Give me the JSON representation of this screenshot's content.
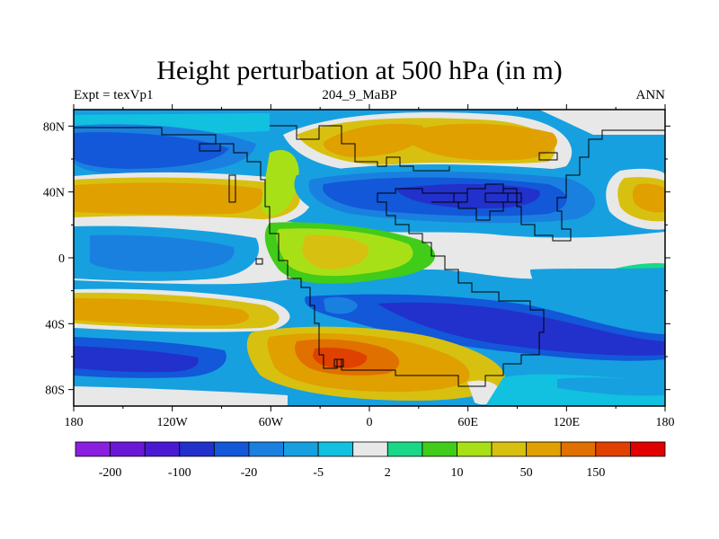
{
  "title": "Height perturbation at 500 hPa (in m)",
  "subtitle_left": "Expt = texVp1",
  "subtitle_center": "204_9_MaBP",
  "subtitle_right": "ANN",
  "lat_ticks": [
    {
      "label": "80N",
      "value": 80
    },
    {
      "label": "40N",
      "value": 40
    },
    {
      "label": "0",
      "value": 0
    },
    {
      "label": "40S",
      "value": -40
    },
    {
      "label": "80S",
      "value": -80
    }
  ],
  "lon_ticks": [
    {
      "label": "180",
      "value": -180
    },
    {
      "label": "120W",
      "value": -120
    },
    {
      "label": "60W",
      "value": -60
    },
    {
      "label": "0",
      "value": 0
    },
    {
      "label": "60E",
      "value": 60
    },
    {
      "label": "120E",
      "value": 120
    },
    {
      "label": "180",
      "value": 180
    }
  ],
  "colorbar": {
    "colors": [
      "#8a1fe0",
      "#6b18d6",
      "#4a1ad2",
      "#2230cc",
      "#1258d8",
      "#1a80e0",
      "#16a0e0",
      "#12c0e0",
      "#e8e8e8",
      "#18d888",
      "#40cc18",
      "#a8e018",
      "#d8c010",
      "#e0a000",
      "#e07000",
      "#e04000",
      "#e00000"
    ],
    "labels": [
      {
        "text": "-200",
        "boundary": 1
      },
      {
        "text": "-100",
        "boundary": 3
      },
      {
        "text": "-20",
        "boundary": 5
      },
      {
        "text": "-5",
        "boundary": 7
      },
      {
        "text": "2",
        "boundary": 9
      },
      {
        "text": "10",
        "boundary": 11
      },
      {
        "text": "50",
        "boundary": 13
      },
      {
        "text": "150",
        "boundary": 15
      }
    ]
  }
}
